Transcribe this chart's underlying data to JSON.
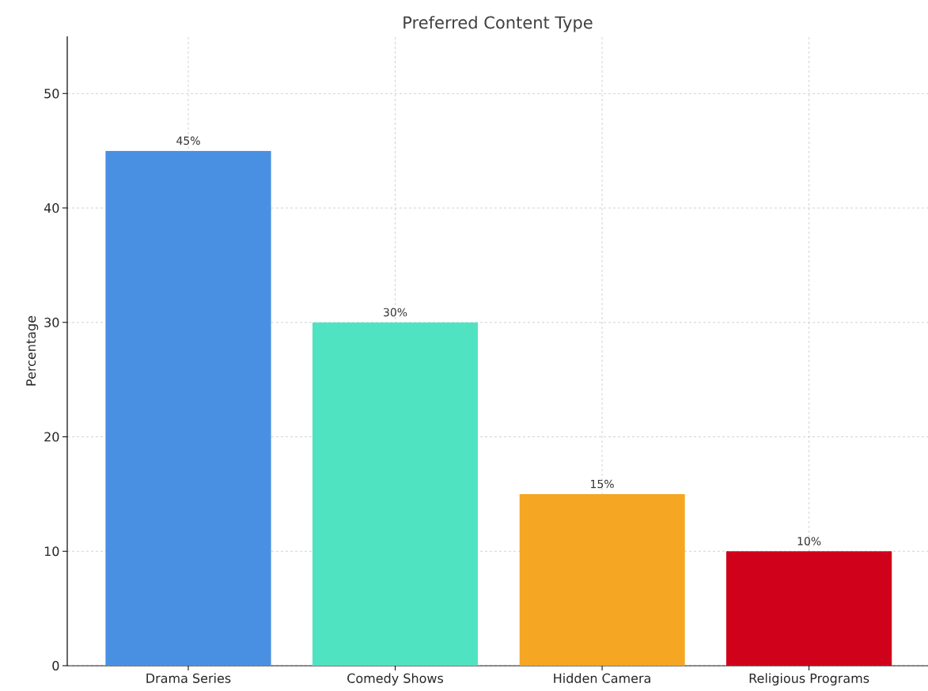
{
  "chart_data": {
    "type": "bar",
    "title": "Preferred Content Type",
    "ylabel": "Percentage",
    "categories": [
      "Drama Series",
      "Comedy Shows",
      "Hidden Camera",
      "Religious Programs"
    ],
    "values": [
      45,
      30,
      15,
      10
    ],
    "colors": [
      "#4a90e2",
      "#50e3c2",
      "#f5a623",
      "#d0021b"
    ],
    "value_labels": [
      "45%",
      "30%",
      "15%",
      "10%"
    ],
    "ylim": [
      0,
      55
    ],
    "yticks": [
      0,
      10,
      20,
      30,
      40,
      50
    ],
    "grid": true
  }
}
